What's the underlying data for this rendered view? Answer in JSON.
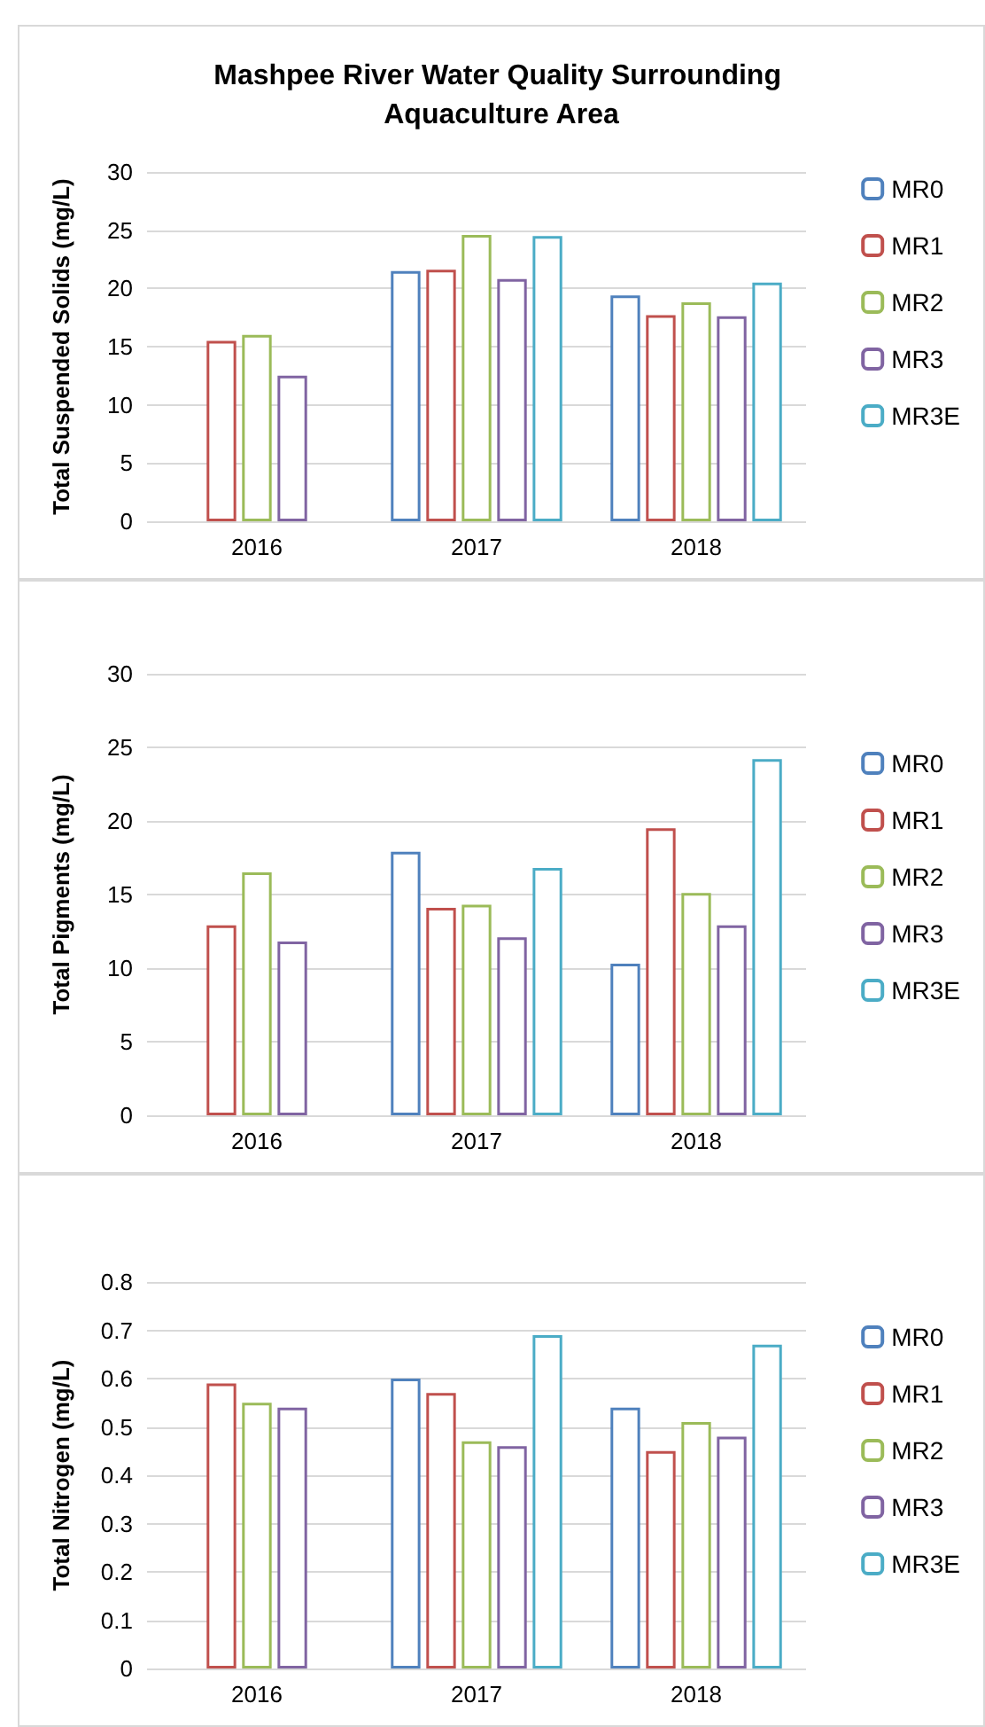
{
  "chart_data": [
    {
      "type": "bar",
      "title": "Mashpee River Water Quality Surrounding Aquaculture Area",
      "ylabel": "Total Suspended Solids (mg/L)",
      "categories": [
        "2016",
        "2017",
        "2018"
      ],
      "series": [
        {
          "name": "MR0",
          "color": "#4f81bd",
          "values": [
            null,
            21.5,
            19.4
          ]
        },
        {
          "name": "MR1",
          "color": "#c0504d",
          "values": [
            15.5,
            21.6,
            17.7
          ]
        },
        {
          "name": "MR2",
          "color": "#9bbb59",
          "values": [
            16.0,
            24.6,
            18.8
          ]
        },
        {
          "name": "MR3",
          "color": "#8064a2",
          "values": [
            12.5,
            20.8,
            17.6
          ]
        },
        {
          "name": "MR3E",
          "color": "#4bacc6",
          "values": [
            null,
            24.5,
            20.5
          ]
        }
      ],
      "ylim": [
        0,
        30
      ],
      "yticks": [
        0,
        5,
        10,
        15,
        20,
        25,
        30
      ],
      "grid": "y",
      "legend": "right"
    },
    {
      "type": "bar",
      "ylabel": "Total Pigments (mg/L)",
      "categories": [
        "2016",
        "2017",
        "2018"
      ],
      "series": [
        {
          "name": "MR0",
          "color": "#4f81bd",
          "values": [
            null,
            17.9,
            10.3
          ]
        },
        {
          "name": "MR1",
          "color": "#c0504d",
          "values": [
            12.9,
            14.1,
            19.5
          ]
        },
        {
          "name": "MR2",
          "color": "#9bbb59",
          "values": [
            16.5,
            14.3,
            15.1
          ]
        },
        {
          "name": "MR3",
          "color": "#8064a2",
          "values": [
            11.8,
            12.1,
            12.9
          ]
        },
        {
          "name": "MR3E",
          "color": "#4bacc6",
          "values": [
            null,
            16.8,
            24.2
          ]
        }
      ],
      "ylim": [
        0,
        30
      ],
      "yticks": [
        0,
        5,
        10,
        15,
        20,
        25,
        30
      ],
      "grid": "y",
      "legend": "right"
    },
    {
      "type": "bar",
      "ylabel": "Total Nitrogen (mg/L)",
      "categories": [
        "2016",
        "2017",
        "2018"
      ],
      "series": [
        {
          "name": "MR0",
          "color": "#4f81bd",
          "values": [
            null,
            0.6,
            0.54
          ]
        },
        {
          "name": "MR1",
          "color": "#c0504d",
          "values": [
            0.59,
            0.57,
            0.45
          ]
        },
        {
          "name": "MR2",
          "color": "#9bbb59",
          "values": [
            0.55,
            0.47,
            0.51
          ]
        },
        {
          "name": "MR3",
          "color": "#8064a2",
          "values": [
            0.54,
            0.46,
            0.48
          ]
        },
        {
          "name": "MR3E",
          "color": "#4bacc6",
          "values": [
            null,
            0.69,
            0.67
          ]
        }
      ],
      "ylim": [
        0,
        0.8
      ],
      "yticks": [
        0,
        0.1,
        0.2,
        0.3,
        0.4,
        0.5,
        0.6,
        0.7,
        0.8
      ],
      "grid": "y",
      "legend": "right"
    }
  ]
}
